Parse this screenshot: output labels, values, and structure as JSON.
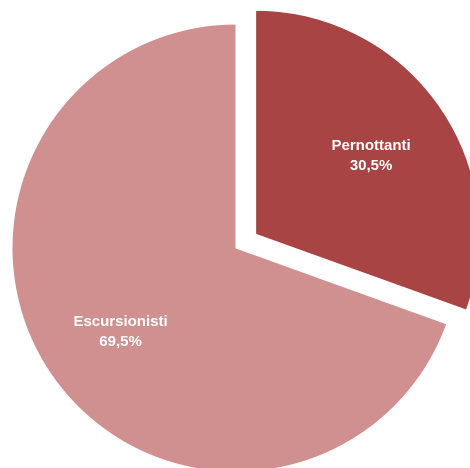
{
  "chart_data": {
    "type": "pie",
    "title": "",
    "legend": "none",
    "slices": [
      {
        "label": "Pernottanti",
        "value": 30.5,
        "value_label": "30,5%",
        "color": "#a84444",
        "exploded": true
      },
      {
        "label": "Escursionisti",
        "value": 69.5,
        "value_label": "69,5%",
        "color": "#d09090",
        "exploded": false
      }
    ]
  }
}
